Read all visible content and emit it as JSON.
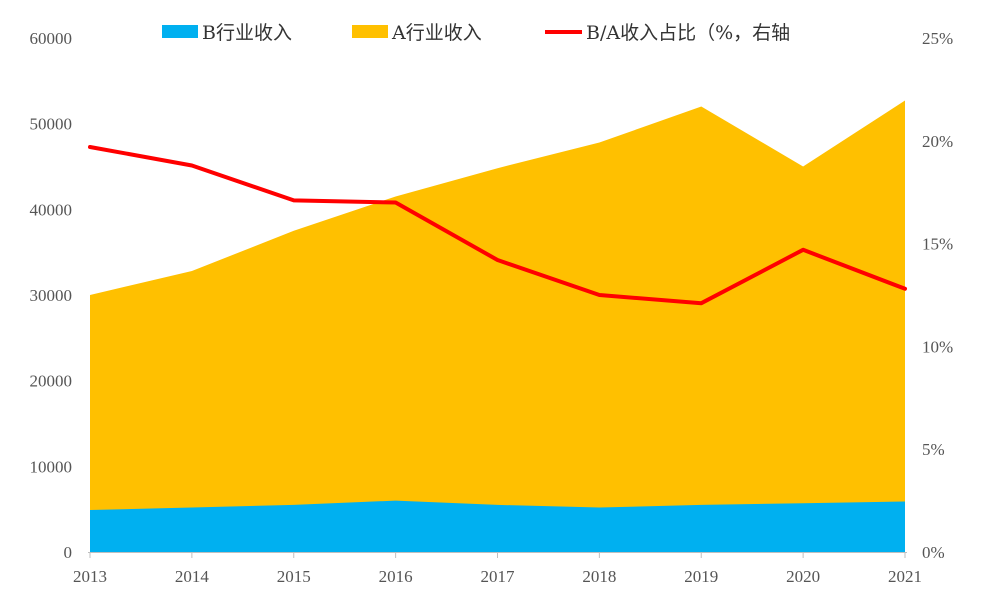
{
  "chart_data": {
    "type": "area",
    "categories": [
      "2013",
      "2014",
      "2015",
      "2016",
      "2017",
      "2018",
      "2019",
      "2020",
      "2021"
    ],
    "series": [
      {
        "name": "B行业收入",
        "kind": "area",
        "axis": "left",
        "color": "#00B0F0",
        "values": [
          4900,
          5200,
          5500,
          6000,
          5500,
          5200,
          5500,
          5700,
          5900
        ]
      },
      {
        "name": "A行业收入",
        "kind": "area",
        "axis": "left",
        "color": "#FFC000",
        "values": [
          30000,
          32800,
          37500,
          41500,
          44800,
          47800,
          52000,
          45000,
          52700
        ]
      },
      {
        "name": "B/A收入占比（%，右轴",
        "kind": "line",
        "axis": "right",
        "color": "#FF0000",
        "values": [
          19.7,
          18.8,
          17.1,
          17.0,
          14.2,
          12.5,
          12.1,
          14.7,
          12.8
        ]
      }
    ],
    "y_left": {
      "lim": [
        0,
        60000
      ],
      "ticks": [
        0,
        10000,
        20000,
        30000,
        40000,
        50000,
        60000
      ],
      "tick_labels": [
        "0",
        "10000",
        "20000",
        "30000",
        "40000",
        "50000",
        "60000"
      ]
    },
    "y_right": {
      "lim": [
        0,
        25
      ],
      "ticks": [
        0,
        5,
        10,
        15,
        20,
        25
      ],
      "tick_labels": [
        "0%",
        "5%",
        "10%",
        "15%",
        "20%",
        "25%"
      ]
    },
    "legend": {
      "position": "top",
      "entries": [
        "B行业收入",
        "A行业收入",
        "B/A收入占比（%，右轴"
      ]
    },
    "grid": false
  }
}
